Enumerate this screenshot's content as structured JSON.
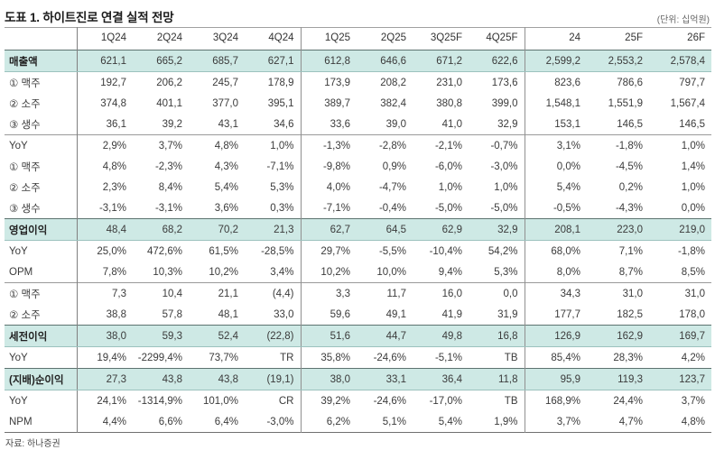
{
  "title": "도표 1. 하이트진로 연결 실적 전망",
  "unit_note": "(단위: 십억원)",
  "source": "자료: 하나증권",
  "colors": {
    "highlight_row_bg": "#cee9e5",
    "highlight_border_top": "#5d7370",
    "grid_line": "#909090",
    "table_bottom_border": "#707070"
  },
  "table": {
    "columns": [
      "",
      "1Q24",
      "2Q24",
      "3Q24",
      "4Q24",
      "1Q25",
      "2Q25",
      "3Q25F",
      "4Q25F",
      "24",
      "25F",
      "26F"
    ],
    "rows": [
      {
        "label": "매출액",
        "style": "highlight",
        "values": [
          "621,1",
          "665,2",
          "685,7",
          "627,1",
          "612,8",
          "646,6",
          "671,2",
          "622,6",
          "2,599,2",
          "2,553,2",
          "2,578,4"
        ]
      },
      {
        "label": "① 맥주",
        "style": "normal",
        "values": [
          "192,7",
          "206,2",
          "245,7",
          "178,9",
          "173,9",
          "208,2",
          "231,0",
          "173,6",
          "823,6",
          "786,6",
          "797,7"
        ]
      },
      {
        "label": "② 소주",
        "style": "normal",
        "values": [
          "374,8",
          "401,1",
          "377,0",
          "395,1",
          "389,7",
          "382,4",
          "380,8",
          "399,0",
          "1,548,1",
          "1,551,9",
          "1,567,4"
        ]
      },
      {
        "label": "③ 생수",
        "style": "normal",
        "values": [
          "36,1",
          "39,2",
          "43,1",
          "34,6",
          "33,6",
          "39,0",
          "41,0",
          "32,9",
          "153,1",
          "146,5",
          "146,5"
        ]
      },
      {
        "label": "YoY",
        "style": "section",
        "values": [
          "2,9%",
          "3,7%",
          "4,8%",
          "1,0%",
          "-1,3%",
          "-2,8%",
          "-2,1%",
          "-0,7%",
          "3,1%",
          "-1,8%",
          "1,0%"
        ]
      },
      {
        "label": "① 맥주",
        "style": "normal",
        "values": [
          "4,8%",
          "-2,3%",
          "4,3%",
          "-7,1%",
          "-9,8%",
          "0,9%",
          "-6,0%",
          "-3,0%",
          "0,0%",
          "-4,5%",
          "1,4%"
        ]
      },
      {
        "label": "② 소주",
        "style": "normal",
        "values": [
          "2,3%",
          "8,4%",
          "5,4%",
          "5,3%",
          "4,0%",
          "-4,7%",
          "1,0%",
          "1,0%",
          "5,4%",
          "0,2%",
          "1,0%"
        ]
      },
      {
        "label": "③ 생수",
        "style": "normal",
        "values": [
          "-3,1%",
          "-3,1%",
          "3,6%",
          "0,3%",
          "-7,1%",
          "-0,4%",
          "-5,0%",
          "-5,0%",
          "-0,5%",
          "-4,3%",
          "0,0%"
        ]
      },
      {
        "label": "영업이익",
        "style": "highlight",
        "values": [
          "48,4",
          "68,2",
          "70,2",
          "21,3",
          "62,7",
          "64,5",
          "62,9",
          "32,9",
          "208,1",
          "223,0",
          "219,0"
        ]
      },
      {
        "label": "YoY",
        "style": "normal",
        "values": [
          "25,0%",
          "472,6%",
          "61,5%",
          "-28,5%",
          "29,7%",
          "-5,5%",
          "-10,4%",
          "54,2%",
          "68,0%",
          "7,1%",
          "-1,8%"
        ]
      },
      {
        "label": "OPM",
        "style": "normal",
        "values": [
          "7,8%",
          "10,3%",
          "10,2%",
          "3,4%",
          "10,2%",
          "10,0%",
          "9,4%",
          "5,3%",
          "8,0%",
          "8,7%",
          "8,5%"
        ]
      },
      {
        "label": "① 맥주",
        "style": "section",
        "values": [
          "7,3",
          "10,4",
          "21,1",
          "(4,4)",
          "3,3",
          "11,7",
          "16,0",
          "0,0",
          "34,3",
          "31,0",
          "31,0"
        ]
      },
      {
        "label": "② 소주",
        "style": "normal",
        "values": [
          "38,8",
          "57,8",
          "48,1",
          "33,0",
          "59,6",
          "49,1",
          "41,9",
          "31,9",
          "177,7",
          "182,5",
          "178,0"
        ]
      },
      {
        "label": "세전이익",
        "style": "highlight",
        "values": [
          "38,0",
          "59,3",
          "52,4",
          "(22,8)",
          "51,6",
          "44,7",
          "49,8",
          "16,8",
          "126,9",
          "162,9",
          "169,7"
        ]
      },
      {
        "label": "YoY",
        "style": "normal",
        "values": [
          "19,4%",
          "-2299,4%",
          "73,7%",
          "TR",
          "35,8%",
          "-24,6%",
          "-5,1%",
          "TB",
          "85,4%",
          "28,3%",
          "4,2%"
        ]
      },
      {
        "label": "(지배)순이익",
        "style": "highlight",
        "values": [
          "27,3",
          "43,8",
          "43,8",
          "(19,1)",
          "38,0",
          "33,1",
          "36,4",
          "11,8",
          "95,9",
          "119,3",
          "123,7"
        ]
      },
      {
        "label": "YoY",
        "style": "normal",
        "values": [
          "24,1%",
          "-1314,9%",
          "101,0%",
          "CR",
          "39,2%",
          "-24,6%",
          "-17,0%",
          "TB",
          "168,9%",
          "24,4%",
          "3,7%"
        ]
      },
      {
        "label": "NPM",
        "style": "normal",
        "values": [
          "4,4%",
          "6,6%",
          "6,4%",
          "-3,0%",
          "6,2%",
          "5,1%",
          "5,4%",
          "1,9%",
          "3,7%",
          "4,7%",
          "4,8%"
        ]
      }
    ]
  }
}
